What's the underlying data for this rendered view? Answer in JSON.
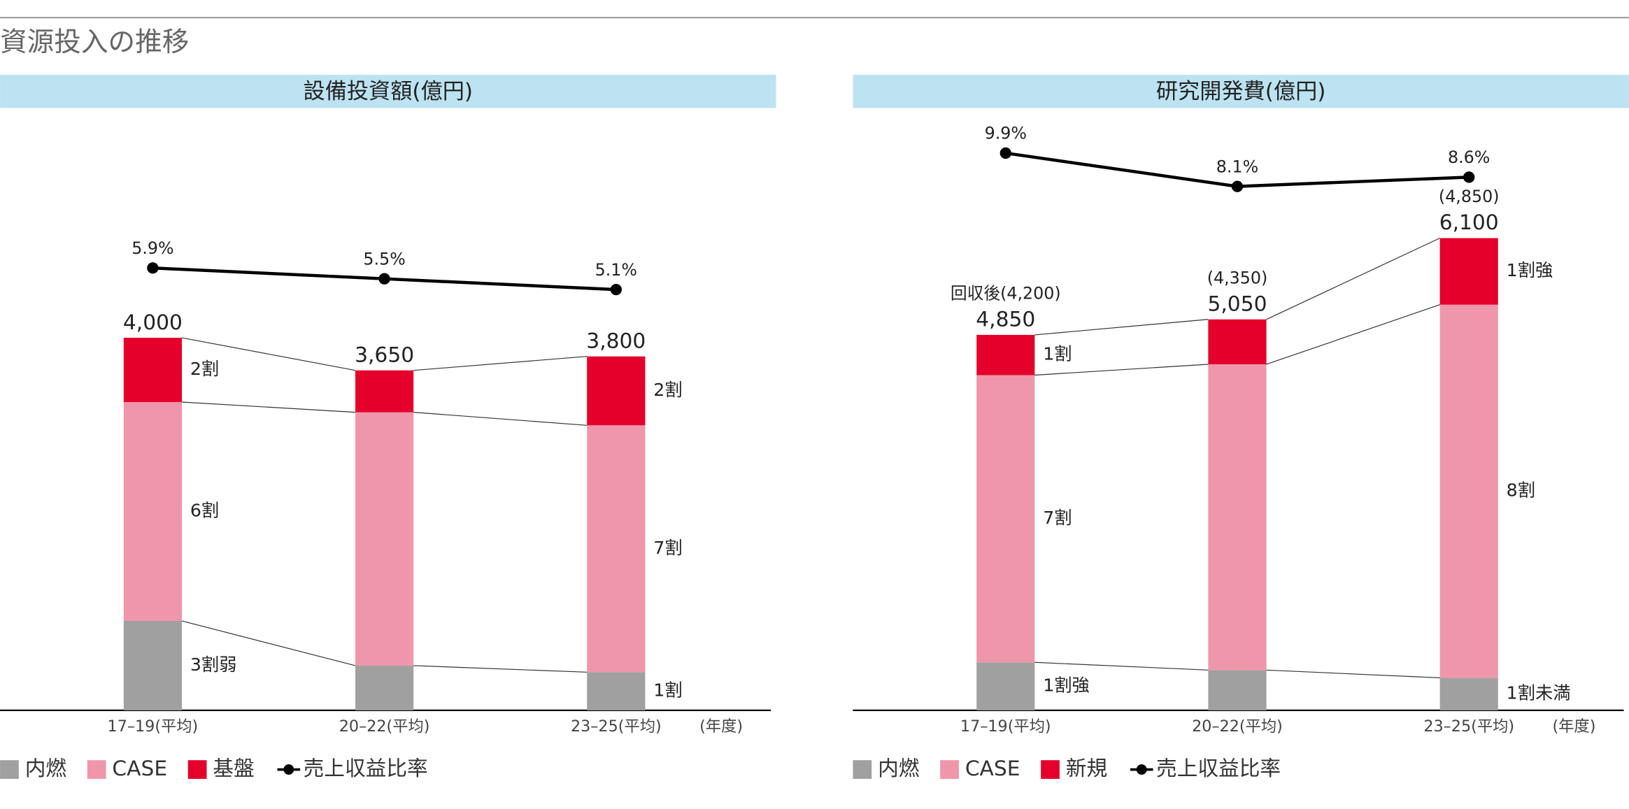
{
  "title": "資源投入の推移",
  "chart_data": [
    {
      "type": "bar",
      "stacked": true,
      "title": "設備投資額(億円)",
      "categories": [
        "17–19(平均)",
        "20–22(平均)",
        "23–25(平均)"
      ],
      "x_unit": "(年度)",
      "ylim": [
        0,
        6400
      ],
      "y2lim": [
        -10.5,
        11.6
      ],
      "total_labels": [
        "4,000",
        "3,650",
        "3,800"
      ],
      "series": [
        {
          "name": "内燃",
          "color": "#a0a0a0",
          "values": [
            960,
            480,
            410
          ],
          "labels": [
            "3割弱",
            null,
            "1割"
          ]
        },
        {
          "name": "CASE",
          "color": "#f096aa",
          "values": [
            2350,
            2720,
            2650
          ],
          "labels": [
            "6割",
            null,
            "7割"
          ]
        },
        {
          "name": "基盤",
          "color": "#e4002b",
          "values": [
            690,
            450,
            740
          ],
          "labels": [
            "2割",
            null,
            "2割"
          ]
        },
        {
          "name": "売上収益比率",
          "color": "#000000",
          "axis": "y2",
          "values": [
            5.9,
            5.5,
            5.1
          ],
          "value_labels": [
            "5.9%",
            "5.5%",
            "5.1%"
          ]
        }
      ]
    },
    {
      "type": "bar",
      "stacked": true,
      "title": "研究開発費(億円)",
      "categories": [
        "17–19(平均)",
        "20–22(平均)",
        "23–25(平均)"
      ],
      "x_unit": "(年度)",
      "ylim": [
        0,
        7700
      ],
      "y2lim": [
        -20.2,
        12
      ],
      "total_labels": [
        "4,850",
        "5,050",
        "6,100"
      ],
      "annotations": [
        "回収後(4,200)",
        "(4,350)",
        "(4,850)"
      ],
      "series": [
        {
          "name": "内燃",
          "color": "#a0a0a0",
          "values": [
            620,
            520,
            420
          ],
          "labels": [
            "1割強",
            null,
            "1割未満"
          ]
        },
        {
          "name": "CASE",
          "color": "#f096aa",
          "values": [
            3710,
            3950,
            4820
          ],
          "labels": [
            "7割",
            null,
            "8割"
          ]
        },
        {
          "name": "新規",
          "color": "#e4002b",
          "values": [
            520,
            580,
            860
          ],
          "labels": [
            "1割",
            null,
            "1割強"
          ]
        },
        {
          "name": "売上収益比率",
          "color": "#000000",
          "axis": "y2",
          "values": [
            9.9,
            8.1,
            8.6
          ],
          "value_labels": [
            "9.9%",
            "8.1%",
            "8.6%"
          ]
        }
      ]
    }
  ]
}
